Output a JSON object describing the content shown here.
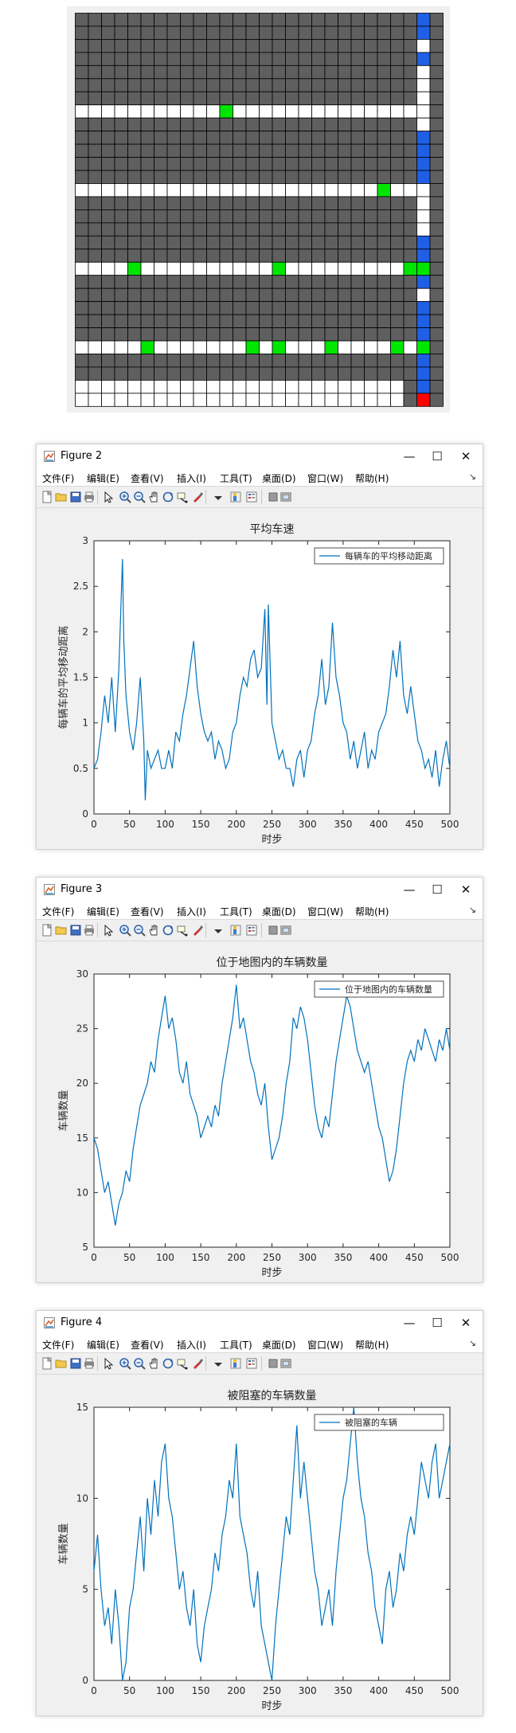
{
  "grid": {
    "rows": 30,
    "cols": 28,
    "colors": {
      "building": "#5f5f5f",
      "road": "#ffffff",
      "car_on_road": "#00e600",
      "blue_car": "#1f5fe6",
      "red_car": "#ff0000",
      "grid_line": "#000000",
      "background": "#f0f0f0"
    },
    "white_rows": [
      7,
      13,
      19,
      25,
      28,
      29
    ],
    "white_col": 26,
    "gray_col": 27,
    "green_cells": [
      [
        7,
        11
      ],
      [
        13,
        23
      ],
      [
        19,
        4
      ],
      [
        19,
        15
      ],
      [
        19,
        25
      ],
      [
        19,
        26
      ],
      [
        25,
        5
      ],
      [
        25,
        13
      ],
      [
        25,
        15
      ],
      [
        25,
        19
      ],
      [
        25,
        24
      ],
      [
        25,
        26
      ]
    ],
    "blue_cells_col": 26,
    "blue_cells_rows": [
      0,
      1,
      3,
      9,
      10,
      11,
      12,
      17,
      18,
      20,
      22,
      23,
      24,
      26,
      27,
      28
    ],
    "red_cells": [
      [
        29,
        26
      ]
    ]
  },
  "figures": [
    {
      "title": "Figure 2",
      "menu": [
        "文件(F)",
        "编辑(E)",
        "查看(V)",
        "插入(I)",
        "工具(T)",
        "桌面(D)",
        "窗口(W)",
        "帮助(H)"
      ],
      "window_controls": {
        "minimize": "—",
        "maximize": "☐",
        "close": "✕"
      },
      "toolbar_icons": [
        "new-file-icon",
        "open-folder-icon",
        "save-icon",
        "print-icon",
        "pointer-icon",
        "zoom-in-icon",
        "zoom-out-icon",
        "pan-icon",
        "rotate-icon",
        "data-cursor-icon",
        "brush-icon",
        "link-icon",
        "colorbar-icon",
        "legend-icon",
        "hide-plot-tools-icon",
        "show-plot-tools-icon"
      ],
      "chart_data": {
        "type": "line",
        "title": "平均车速",
        "xlabel": "时步",
        "ylabel": "每辆车的平均移动距离",
        "xlim": [
          0,
          500
        ],
        "ylim": [
          0,
          3
        ],
        "xticks": [
          0,
          50,
          100,
          150,
          200,
          250,
          300,
          350,
          400,
          450,
          500
        ],
        "yticks": [
          0,
          0.5,
          1,
          1.5,
          2,
          2.5,
          3
        ],
        "legend": "top-right",
        "grid": false,
        "color": "#0072bd",
        "series": [
          {
            "name": "每辆车的平均移动距离",
            "x": [
              0,
              5,
              10,
              15,
              20,
              25,
              30,
              35,
              40,
              42,
              45,
              50,
              55,
              60,
              65,
              70,
              72,
              75,
              80,
              85,
              90,
              95,
              100,
              105,
              110,
              115,
              120,
              125,
              130,
              135,
              140,
              145,
              150,
              155,
              160,
              165,
              170,
              175,
              180,
              185,
              190,
              195,
              200,
              205,
              210,
              215,
              220,
              225,
              230,
              235,
              240,
              243,
              245,
              250,
              255,
              260,
              265,
              270,
              275,
              280,
              285,
              290,
              295,
              300,
              305,
              310,
              315,
              320,
              325,
              330,
              335,
              340,
              345,
              350,
              355,
              360,
              365,
              370,
              375,
              380,
              385,
              390,
              395,
              400,
              405,
              410,
              415,
              420,
              425,
              430,
              435,
              440,
              445,
              450,
              455,
              460,
              465,
              470,
              475,
              480,
              485,
              490,
              495,
              500
            ],
            "y": [
              0.5,
              0.6,
              0.9,
              1.3,
              1.0,
              1.5,
              0.9,
              1.6,
              2.8,
              1.9,
              1.3,
              0.9,
              0.7,
              1.0,
              1.5,
              0.8,
              0.15,
              0.7,
              0.5,
              0.6,
              0.7,
              0.5,
              0.5,
              0.7,
              0.5,
              0.9,
              0.8,
              1.1,
              1.3,
              1.6,
              1.9,
              1.4,
              1.1,
              0.9,
              0.8,
              0.9,
              0.6,
              0.8,
              0.7,
              0.5,
              0.6,
              0.9,
              1.0,
              1.3,
              1.5,
              1.4,
              1.7,
              1.8,
              1.5,
              1.6,
              2.25,
              1.2,
              2.3,
              1.0,
              0.8,
              0.6,
              0.7,
              0.5,
              0.5,
              0.3,
              0.6,
              0.7,
              0.4,
              0.7,
              0.8,
              1.1,
              1.3,
              1.7,
              1.2,
              1.4,
              2.1,
              1.5,
              1.3,
              1.0,
              0.9,
              0.6,
              0.8,
              0.5,
              0.7,
              0.9,
              0.5,
              0.7,
              0.6,
              0.9,
              1.0,
              1.1,
              1.4,
              1.8,
              1.5,
              1.9,
              1.3,
              1.1,
              1.4,
              1.1,
              0.8,
              0.7,
              0.5,
              0.6,
              0.4,
              0.7,
              0.3,
              0.6,
              0.8,
              0.5
            ]
          }
        ]
      }
    },
    {
      "title": "Figure 3",
      "menu": [
        "文件(F)",
        "编辑(E)",
        "查看(V)",
        "插入(I)",
        "工具(T)",
        "桌面(D)",
        "窗口(W)",
        "帮助(H)"
      ],
      "window_controls": {
        "minimize": "—",
        "maximize": "☐",
        "close": "✕"
      },
      "toolbar_icons": [
        "new-file-icon",
        "open-folder-icon",
        "save-icon",
        "print-icon",
        "pointer-icon",
        "zoom-in-icon",
        "zoom-out-icon",
        "pan-icon",
        "rotate-icon",
        "data-cursor-icon",
        "brush-icon",
        "link-icon",
        "colorbar-icon",
        "legend-icon",
        "hide-plot-tools-icon",
        "show-plot-tools-icon"
      ],
      "chart_data": {
        "type": "line",
        "title": "位于地图内的车辆数量",
        "xlabel": "时步",
        "ylabel": "车辆数量",
        "xlim": [
          0,
          500
        ],
        "ylim": [
          5,
          30
        ],
        "xticks": [
          0,
          50,
          100,
          150,
          200,
          250,
          300,
          350,
          400,
          450,
          500
        ],
        "yticks": [
          5,
          10,
          15,
          20,
          25,
          30
        ],
        "legend": "top-right",
        "grid": false,
        "color": "#0072bd",
        "series": [
          {
            "name": "位于地图内的车辆数量",
            "x": [
              0,
              5,
              10,
              15,
              20,
              25,
              30,
              35,
              40,
              45,
              50,
              55,
              60,
              65,
              70,
              75,
              80,
              85,
              90,
              95,
              100,
              105,
              110,
              115,
              120,
              125,
              130,
              135,
              140,
              145,
              150,
              155,
              160,
              165,
              170,
              175,
              180,
              185,
              190,
              195,
              200,
              205,
              210,
              215,
              220,
              225,
              230,
              235,
              240,
              245,
              250,
              255,
              260,
              265,
              270,
              275,
              280,
              285,
              290,
              295,
              300,
              305,
              310,
              315,
              320,
              325,
              330,
              335,
              340,
              345,
              350,
              355,
              360,
              365,
              370,
              375,
              380,
              385,
              390,
              395,
              400,
              405,
              410,
              415,
              420,
              425,
              430,
              435,
              440,
              445,
              450,
              455,
              460,
              465,
              470,
              475,
              480,
              485,
              490,
              495,
              500
            ],
            "y": [
              15,
              14,
              12,
              10,
              11,
              9,
              7,
              9,
              10,
              12,
              11,
              14,
              16,
              18,
              19,
              20,
              22,
              21,
              24,
              26,
              28,
              25,
              26,
              24,
              21,
              20,
              22,
              19,
              18,
              17,
              15,
              16,
              17,
              16,
              18,
              17,
              20,
              22,
              24,
              26,
              29,
              25,
              26,
              24,
              22,
              21,
              19,
              18,
              20,
              16,
              13,
              14,
              15,
              17,
              20,
              22,
              26,
              25,
              27,
              26,
              24,
              21,
              18,
              16,
              15,
              17,
              16,
              19,
              22,
              24,
              26,
              28,
              27,
              25,
              23,
              22,
              21,
              22,
              20,
              18,
              16,
              15,
              13,
              11,
              12,
              14,
              17,
              20,
              22,
              23,
              22,
              24,
              23,
              25,
              24,
              23,
              22,
              24,
              23,
              25,
              23
            ]
          }
        ]
      }
    },
    {
      "title": "Figure 4",
      "menu": [
        "文件(F)",
        "编辑(E)",
        "查看(V)",
        "插入(I)",
        "工具(T)",
        "桌面(D)",
        "窗口(W)",
        "帮助(H)"
      ],
      "window_controls": {
        "minimize": "—",
        "maximize": "☐",
        "close": "✕"
      },
      "toolbar_icons": [
        "new-file-icon",
        "open-folder-icon",
        "save-icon",
        "print-icon",
        "pointer-icon",
        "zoom-in-icon",
        "zoom-out-icon",
        "pan-icon",
        "rotate-icon",
        "data-cursor-icon",
        "brush-icon",
        "link-icon",
        "colorbar-icon",
        "legend-icon",
        "hide-plot-tools-icon",
        "show-plot-tools-icon"
      ],
      "chart_data": {
        "type": "line",
        "title": "被阻塞的车辆数量",
        "xlabel": "时步",
        "ylabel": "车辆数量",
        "xlim": [
          0,
          500
        ],
        "ylim": [
          0,
          15
        ],
        "xticks": [
          0,
          50,
          100,
          150,
          200,
          250,
          300,
          350,
          400,
          450,
          500
        ],
        "yticks": [
          0,
          5,
          10,
          15
        ],
        "legend": "top-right",
        "grid": false,
        "color": "#0072bd",
        "series": [
          {
            "name": "被阻塞的车辆",
            "x": [
              0,
              5,
              10,
              15,
              20,
              25,
              30,
              35,
              40,
              45,
              50,
              55,
              60,
              65,
              70,
              75,
              80,
              85,
              90,
              95,
              100,
              105,
              110,
              115,
              120,
              125,
              130,
              135,
              140,
              145,
              150,
              155,
              160,
              165,
              170,
              175,
              180,
              185,
              190,
              195,
              200,
              205,
              210,
              215,
              220,
              225,
              230,
              235,
              240,
              245,
              250,
              255,
              260,
              265,
              270,
              275,
              280,
              285,
              290,
              295,
              300,
              305,
              310,
              315,
              320,
              325,
              330,
              335,
              340,
              345,
              350,
              355,
              360,
              365,
              370,
              375,
              380,
              385,
              390,
              395,
              400,
              405,
              410,
              415,
              420,
              425,
              430,
              435,
              440,
              445,
              450,
              455,
              460,
              465,
              470,
              475,
              480,
              485,
              490,
              495,
              500
            ],
            "y": [
              6,
              8,
              5,
              3,
              4,
              2,
              5,
              3,
              0,
              1,
              4,
              5,
              7,
              9,
              6,
              10,
              8,
              11,
              9,
              12,
              13,
              10,
              9,
              7,
              5,
              6,
              4,
              3,
              5,
              2,
              1,
              3,
              4,
              5,
              7,
              6,
              8,
              9,
              11,
              10,
              13,
              9,
              8,
              7,
              5,
              4,
              6,
              3,
              2,
              1,
              0,
              3,
              5,
              7,
              9,
              8,
              11,
              14,
              10,
              12,
              10,
              8,
              6,
              5,
              3,
              4,
              5,
              3,
              6,
              8,
              10,
              11,
              13,
              15,
              12,
              10,
              9,
              7,
              6,
              4,
              3,
              2,
              5,
              6,
              4,
              5,
              7,
              6,
              8,
              9,
              8,
              10,
              12,
              11,
              10,
              12,
              13,
              10,
              11,
              12,
              13
            ]
          }
        ]
      }
    }
  ]
}
